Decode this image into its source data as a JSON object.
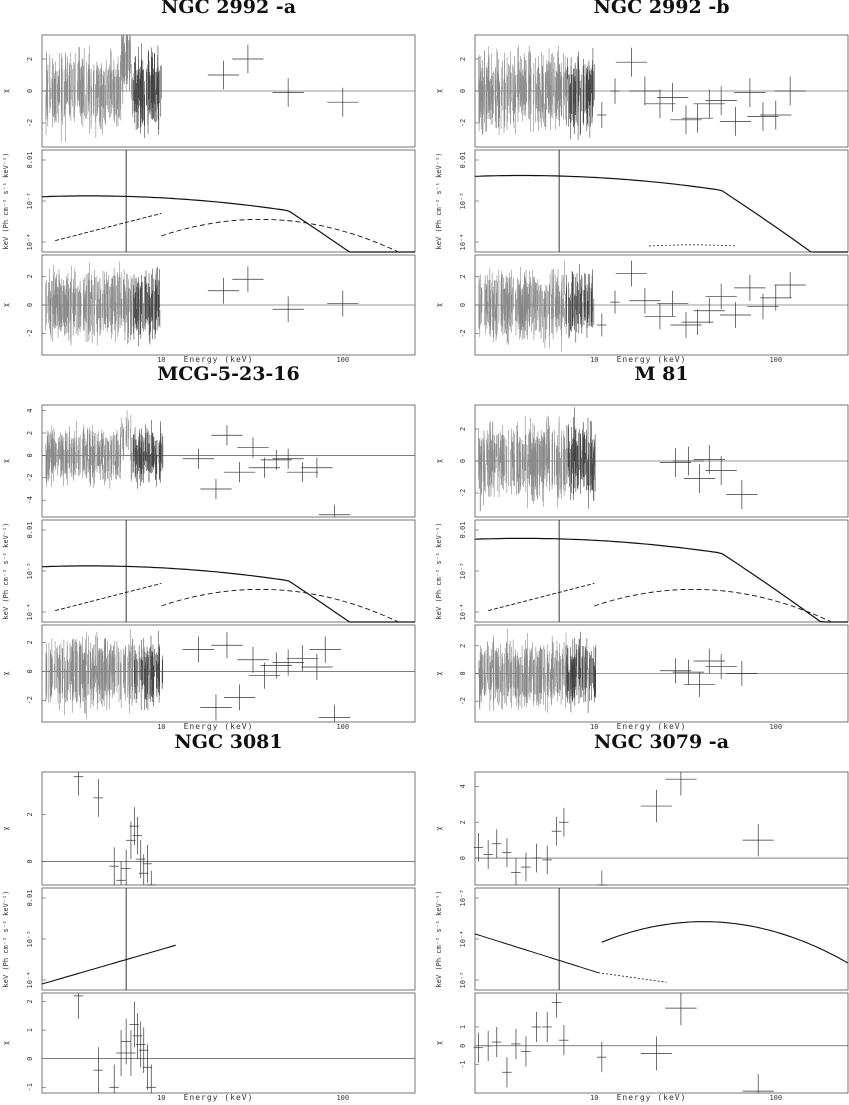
{
  "chart_data": [
    {
      "type": "line",
      "title": "NGC 2992 -a",
      "xlabel": "Energy (keV)",
      "x_scale": "log",
      "x_ticks": [
        "10",
        "100"
      ],
      "panels": [
        {
          "role": "residuals-top",
          "ylabel": "χ",
          "y_ticks": [
            "2",
            "0",
            "-2"
          ],
          "ylim": [
            -3.5,
            3.5
          ]
        },
        {
          "role": "model",
          "ylabel": "keV (Ph cm⁻² s⁻¹ keV⁻¹)",
          "y_ticks": [
            "0.01",
            "10⁻³",
            "10⁻⁴"
          ]
        },
        {
          "role": "residuals-bottom",
          "ylabel": "χ",
          "y_ticks": [
            "2",
            "0",
            "-2"
          ],
          "ylim": [
            -3.5,
            3.5
          ]
        }
      ],
      "high_energy_points_top": [
        [
          22,
          1.0
        ],
        [
          30,
          2.0
        ],
        [
          50,
          -0.1
        ],
        [
          100,
          -0.7
        ]
      ],
      "high_energy_points_bottom": [
        [
          22,
          1.0
        ],
        [
          30,
          1.8
        ],
        [
          50,
          -0.3
        ],
        [
          100,
          0.1
        ]
      ]
    },
    {
      "type": "line",
      "title": "NGC 2992 -b",
      "xlabel": "Energy (keV)",
      "x_scale": "log",
      "x_ticks": [
        "10",
        "100"
      ],
      "panels": [
        {
          "role": "residuals-top",
          "ylabel": "χ",
          "y_ticks": [
            "2",
            "0",
            "-2"
          ],
          "ylim": [
            -3.5,
            3.5
          ]
        },
        {
          "role": "model",
          "ylabel": "keV (Ph cm⁻² s⁻¹ keV⁻¹)",
          "y_ticks": [
            "0.01",
            "10⁻³",
            "10⁻⁴"
          ]
        },
        {
          "role": "residuals-bottom",
          "ylabel": "χ",
          "y_ticks": [
            "2",
            "0",
            "-2"
          ],
          "ylim": [
            -3.5,
            3.5
          ]
        }
      ],
      "high_energy_points_top": [
        [
          11,
          -1.5
        ],
        [
          13,
          0.0
        ],
        [
          16,
          1.8
        ],
        [
          19,
          0.0
        ],
        [
          23,
          -0.8
        ],
        [
          27,
          -0.4
        ],
        [
          32,
          -1.8
        ],
        [
          37,
          -1.7
        ],
        [
          43,
          -0.8
        ],
        [
          50,
          -0.6
        ],
        [
          60,
          -1.9
        ],
        [
          72,
          -0.1
        ],
        [
          85,
          -1.6
        ],
        [
          100,
          -1.5
        ],
        [
          120,
          0.0
        ]
      ],
      "high_energy_points_bottom": [
        [
          11,
          -1.4
        ],
        [
          13,
          0.2
        ],
        [
          16,
          2.2
        ],
        [
          19,
          0.3
        ],
        [
          23,
          -0.8
        ],
        [
          27,
          0.1
        ],
        [
          32,
          -1.4
        ],
        [
          37,
          -1.2
        ],
        [
          43,
          -0.4
        ],
        [
          50,
          0.6
        ],
        [
          60,
          -0.7
        ],
        [
          72,
          1.2
        ],
        [
          85,
          -0.1
        ],
        [
          100,
          0.5
        ],
        [
          120,
          1.4
        ]
      ]
    },
    {
      "type": "line",
      "title": "MCG-5-23-16",
      "xlabel": "Energy (keV)",
      "x_scale": "log",
      "x_ticks": [
        "10",
        "100"
      ],
      "panels": [
        {
          "role": "residuals-top",
          "ylabel": "χ",
          "y_ticks": [
            "4",
            "2",
            "0",
            "-2",
            "-4"
          ],
          "ylim": [
            -5.5,
            4.5
          ]
        },
        {
          "role": "model",
          "ylabel": "keV (Ph cm⁻² s⁻¹ keV⁻¹)",
          "y_ticks": [
            "0.01",
            "10⁻³",
            "10⁻⁴"
          ]
        },
        {
          "role": "residuals-bottom",
          "ylabel": "χ",
          "y_ticks": [
            "2",
            "0",
            "-2"
          ],
          "ylim": [
            -3.5,
            3.2
          ]
        }
      ],
      "high_energy_points_top": [
        [
          16,
          -0.3
        ],
        [
          20,
          -3.0
        ],
        [
          23,
          1.8
        ],
        [
          27,
          -1.5
        ],
        [
          32,
          0.7
        ],
        [
          37,
          -1.1
        ],
        [
          43,
          -0.4
        ],
        [
          50,
          -0.3
        ],
        [
          60,
          -1.5
        ],
        [
          72,
          -1.1
        ],
        [
          90,
          -5.3
        ]
      ],
      "high_energy_points_bottom": [
        [
          16,
          1.5
        ],
        [
          20,
          -2.5
        ],
        [
          23,
          1.8
        ],
        [
          27,
          -1.8
        ],
        [
          32,
          0.8
        ],
        [
          37,
          -0.3
        ],
        [
          43,
          0.4
        ],
        [
          50,
          0.6
        ],
        [
          60,
          0.9
        ],
        [
          72,
          0.3
        ],
        [
          80,
          1.5
        ],
        [
          90,
          -3.2
        ]
      ]
    },
    {
      "type": "line",
      "title": "M 81",
      "xlabel": "Energy (keV)",
      "x_scale": "log",
      "x_ticks": [
        "10",
        "100"
      ],
      "panels": [
        {
          "role": "residuals-top",
          "ylabel": "χ",
          "y_ticks": [
            "2",
            "0",
            "-2"
          ],
          "ylim": [
            -3.5,
            3.5
          ]
        },
        {
          "role": "model",
          "ylabel": "keV (Ph cm⁻² s⁻¹ keV⁻¹)",
          "y_ticks": [
            "0.01",
            "10⁻³",
            "10⁻⁴"
          ]
        },
        {
          "role": "residuals-bottom",
          "ylabel": "χ",
          "y_ticks": [
            "2",
            "0",
            "-2"
          ],
          "ylim": [
            -3.5,
            3.5
          ]
        }
      ],
      "high_energy_points_top": [
        [
          28,
          -0.1
        ],
        [
          33,
          0.0
        ],
        [
          38,
          -1.1
        ],
        [
          43,
          0.1
        ],
        [
          50,
          -0.6
        ],
        [
          65,
          -2.1
        ]
      ],
      "high_energy_points_bottom": [
        [
          28,
          0.2
        ],
        [
          33,
          0.1
        ],
        [
          38,
          -0.8
        ],
        [
          43,
          0.9
        ],
        [
          50,
          0.5
        ],
        [
          65,
          0.0
        ]
      ]
    },
    {
      "type": "line",
      "title": "NGC 3081",
      "xlabel": "Energy (keV)",
      "x_scale": "log",
      "x_ticks": [
        "10",
        "100"
      ],
      "panels": [
        {
          "role": "residuals-top",
          "ylabel": "χ",
          "y_ticks": [
            "2",
            "0"
          ],
          "ylim": [
            -1,
            3.8
          ]
        },
        {
          "role": "model",
          "ylabel": "keV (Ph cm⁻² s⁻¹ keV⁻¹)",
          "y_ticks": [
            "0.01",
            "10⁻³",
            "10⁻⁴"
          ]
        },
        {
          "role": "residuals-bottom",
          "ylabel": "χ",
          "y_ticks": [
            "2",
            "1",
            "0",
            "-1"
          ],
          "ylim": [
            -1.2,
            2.3
          ]
        }
      ],
      "data_points_top": [
        [
          3.5,
          3.6
        ],
        [
          4.5,
          2.7
        ],
        [
          5.5,
          -0.2
        ],
        [
          6.0,
          -0.8
        ],
        [
          6.4,
          -0.3
        ],
        [
          6.8,
          0.9
        ],
        [
          7.1,
          1.5
        ],
        [
          7.4,
          1.1
        ],
        [
          7.7,
          0.1
        ],
        [
          8.0,
          -0.5
        ],
        [
          8.4,
          -0.1
        ],
        [
          8.8,
          -1.2
        ]
      ],
      "data_points_bottom": [
        [
          3.5,
          2.2
        ],
        [
          4.5,
          -0.4
        ],
        [
          5.5,
          -1.0
        ],
        [
          6.0,
          0.2
        ],
        [
          6.4,
          0.6
        ],
        [
          6.8,
          0.2
        ],
        [
          7.1,
          1.2
        ],
        [
          7.4,
          0.8
        ],
        [
          7.7,
          0.5
        ],
        [
          8.0,
          0.3
        ],
        [
          8.4,
          -0.3
        ],
        [
          8.8,
          -1.0
        ]
      ]
    },
    {
      "type": "line",
      "title": "NGC 3079 -a",
      "xlabel": "Energy (keV)",
      "x_scale": "log",
      "x_ticks": [
        "10",
        "100"
      ],
      "panels": [
        {
          "role": "residuals-top",
          "ylabel": "χ",
          "y_ticks": [
            "4",
            "2",
            "0"
          ],
          "ylim": [
            -1.5,
            4.8
          ]
        },
        {
          "role": "model",
          "ylabel": "keV (Ph cm⁻² s⁻¹ keV⁻¹)",
          "y_ticks": [
            "10⁻³",
            "10⁻⁴",
            "10⁻⁵"
          ]
        },
        {
          "role": "residuals-bottom",
          "ylabel": "χ",
          "y_ticks": [
            "1",
            "0",
            "-1"
          ],
          "ylim": [
            -2.5,
            2.8
          ]
        }
      ],
      "data_points_top": [
        [
          2.3,
          0.6
        ],
        [
          2.6,
          0.2
        ],
        [
          2.9,
          0.8
        ],
        [
          3.3,
          0.3
        ],
        [
          3.7,
          -0.8
        ],
        [
          4.2,
          -0.5
        ],
        [
          4.8,
          0.0
        ],
        [
          5.5,
          -0.1
        ],
        [
          6.2,
          1.5
        ],
        [
          6.8,
          2.0
        ],
        [
          11,
          -1.5
        ],
        [
          22,
          2.9
        ],
        [
          30,
          4.4
        ],
        [
          80,
          1.0
        ]
      ],
      "data_points_bottom": [
        [
          2.3,
          -0.1
        ],
        [
          2.6,
          0.0
        ],
        [
          2.9,
          0.2
        ],
        [
          3.3,
          -1.4
        ],
        [
          3.7,
          0.1
        ],
        [
          4.2,
          -0.3
        ],
        [
          4.8,
          1.0
        ],
        [
          5.5,
          1.0
        ],
        [
          6.2,
          2.3
        ],
        [
          6.8,
          0.3
        ],
        [
          11,
          -0.6
        ],
        [
          22,
          -0.4
        ],
        [
          30,
          2.0
        ],
        [
          80,
          -2.4
        ]
      ]
    }
  ]
}
